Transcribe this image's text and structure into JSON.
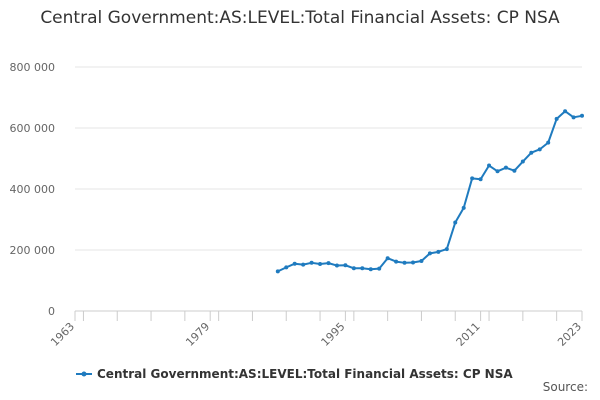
{
  "chart_data": {
    "type": "line",
    "title": "Central Government:AS:LEVEL:Total Financial Assets: CP NSA",
    "xlabel": "",
    "ylabel": "",
    "xlim": [
      1963,
      2023
    ],
    "ylim": [
      0,
      800000
    ],
    "x_ticks": [
      1963,
      1979,
      1995,
      2011,
      2023
    ],
    "y_ticks": [
      0,
      200000,
      400000,
      600000,
      800000
    ],
    "y_tick_labels": [
      "0",
      "200 000",
      "400 000",
      "600 000",
      "800 000"
    ],
    "grid": true,
    "legend_position": "bottom",
    "series": [
      {
        "name": "Central Government:AS:LEVEL:Total Financial Assets: CP NSA",
        "color": "#1f7bbf",
        "x": [
          1987,
          1988,
          1989,
          1990,
          1991,
          1992,
          1993,
          1994,
          1995,
          1996,
          1997,
          1998,
          1999,
          2000,
          2001,
          2002,
          2003,
          2004,
          2005,
          2006,
          2007,
          2008,
          2009,
          2010,
          2011,
          2012,
          2013,
          2014,
          2015,
          2016,
          2017,
          2018,
          2019,
          2020,
          2021,
          2022,
          2023
        ],
        "values": [
          130000,
          143000,
          155000,
          152000,
          158000,
          154000,
          157000,
          149000,
          150000,
          140000,
          140000,
          137000,
          139000,
          173000,
          162000,
          158000,
          159000,
          164000,
          189000,
          194000,
          203000,
          290000,
          338000,
          435000,
          432000,
          477000,
          458000,
          470000,
          460000,
          490000,
          519000,
          530000,
          552000,
          630000,
          655000,
          635000,
          640000
        ]
      }
    ]
  },
  "source_label": "Source:"
}
